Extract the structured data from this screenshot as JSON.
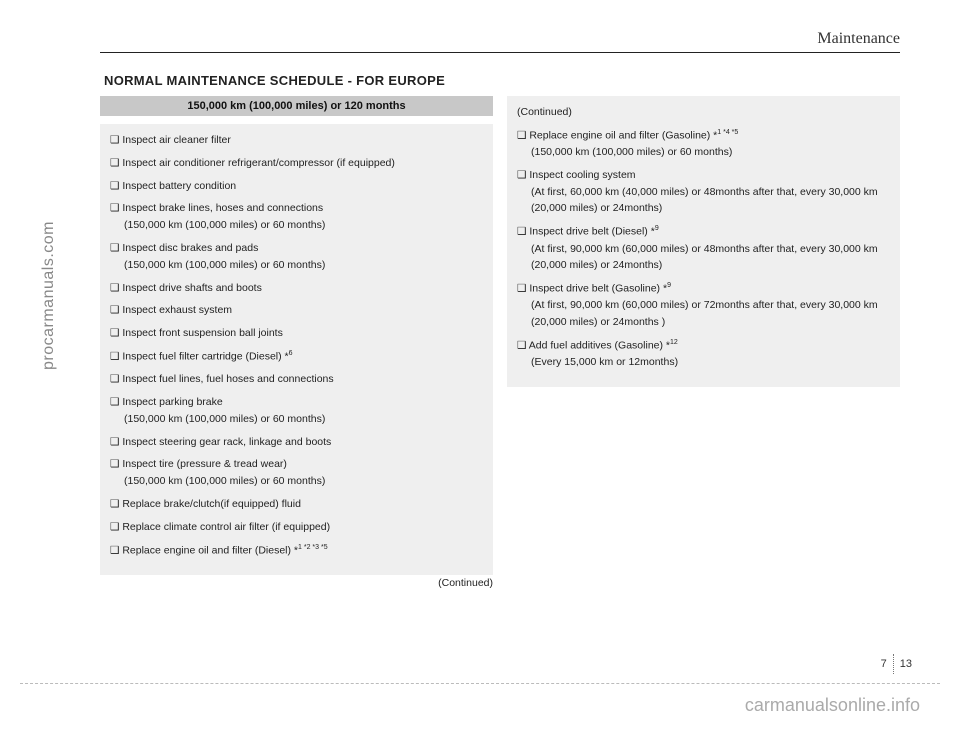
{
  "vertical_label": "procarmanuals.com",
  "chapter": "Maintenance",
  "main_heading": "NORMAL MAINTENANCE SCHEDULE - FOR EUROPE",
  "panel_heading": "150,000 km (100,000 miles) or 120 months",
  "left_items": [
    {
      "t": "❑ Inspect air cleaner filter"
    },
    {
      "t": "❑ Inspect air conditioner refrigerant/compressor (if equipped)"
    },
    {
      "t": "❑ Inspect battery condition"
    },
    {
      "t": "❑ Inspect brake lines, hoses and connections",
      "s": "(150,000 km (100,000 miles) or 60 months)"
    },
    {
      "t": "❑ Inspect disc brakes and pads",
      "s": "(150,000 km (100,000 miles) or 60 months)"
    },
    {
      "t": "❑ Inspect drive shafts and boots"
    },
    {
      "t": "❑ Inspect exhaust system"
    },
    {
      "t": "❑ Inspect front suspension ball joints"
    },
    {
      "t": "❑ Inspect fuel filter cartridge (Diesel) *",
      "sup": "6"
    },
    {
      "t": "❑ Inspect fuel lines, fuel hoses and connections"
    },
    {
      "t": "❑ Inspect parking brake",
      "s": "(150,000 km (100,000 miles) or 60 months)"
    },
    {
      "t": "❑ Inspect steering gear rack, linkage and boots"
    },
    {
      "t": "❑ Inspect tire (pressure & tread wear)",
      "s": "(150,000 km (100,000 miles) or 60 months)"
    },
    {
      "t": "❑ Replace brake/clutch(if equipped) fluid"
    },
    {
      "t": "❑ Replace climate control air filter (if equipped)"
    },
    {
      "t": "❑ Replace engine oil and filter (Diesel) *",
      "sup": "1 *2 *3 *5"
    }
  ],
  "continued_bottom": "(Continued)",
  "continued_top": "(Continued)",
  "right_items": [
    {
      "t": "❑ Replace engine oil and filter (Gasoline) *",
      "sup": "1 *4 *5",
      "s": "(150,000 km (100,000 miles) or 60 months)"
    },
    {
      "t": "❑ Inspect cooling system",
      "s": "(At first, 60,000 km (40,000 miles) or 48months after that, every 30,000 km (20,000 miles) or 24months)"
    },
    {
      "t": "❑ Inspect drive belt (Diesel) *",
      "sup": "9",
      "s": "(At first, 90,000 km (60,000 miles) or 48months after that, every 30,000 km (20,000 miles) or 24months)"
    },
    {
      "t": "❑ Inspect drive belt (Gasoline) *",
      "sup": "9",
      "s": "(At first, 90,000 km (60,000 miles) or 72months after that, every 30,000 km (20,000 miles) or 24months )"
    },
    {
      "t": "❑ Add fuel additives (Gasoline) *",
      "sup": "12",
      "s": "(Every 15,000 km or 12months)"
    }
  ],
  "page_num_left": "7",
  "page_num_right": "13",
  "watermark": "carmanualsonline.info"
}
